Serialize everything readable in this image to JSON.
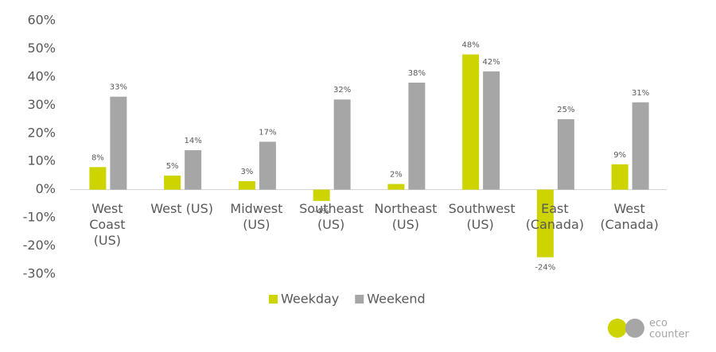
{
  "chart_data": {
    "type": "bar",
    "categories": [
      "West Coast (US)",
      "West (US)",
      "Midwest (US)",
      "Southeast (US)",
      "Northeast (US)",
      "Southwest (US)",
      "East (Canada)",
      "West (Canada)"
    ],
    "series": [
      {
        "name": "Weekday",
        "color": "#cdd400",
        "values": [
          8,
          5,
          3,
          -4,
          2,
          48,
          -24,
          9
        ],
        "value_labels": [
          "8%",
          "5%",
          "3%",
          "-4%",
          "2%",
          "48%",
          "-24%",
          "9%"
        ]
      },
      {
        "name": "Weekend",
        "color": "#a6a6a6",
        "values": [
          33,
          14,
          17,
          32,
          38,
          42,
          25,
          31
        ],
        "value_labels": [
          "33%",
          "14%",
          "17%",
          "32%",
          "38%",
          "42%",
          "25%",
          "31%"
        ]
      }
    ],
    "ylim": [
      -30,
      60
    ],
    "yticks": [
      {
        "value": 60,
        "label": "60%"
      },
      {
        "value": 50,
        "label": "50%"
      },
      {
        "value": 40,
        "label": "40%"
      },
      {
        "value": 30,
        "label": "30%"
      },
      {
        "value": 20,
        "label": "20%"
      },
      {
        "value": 10,
        "label": "10%"
      },
      {
        "value": 0,
        "label": "0%"
      },
      {
        "value": -10,
        "label": "-10%"
      },
      {
        "value": -20,
        "label": "-20%"
      },
      {
        "value": -30,
        "label": "-30%"
      }
    ],
    "legend": "bottom"
  },
  "logo": {
    "line1": "eco",
    "line2": "counter"
  }
}
